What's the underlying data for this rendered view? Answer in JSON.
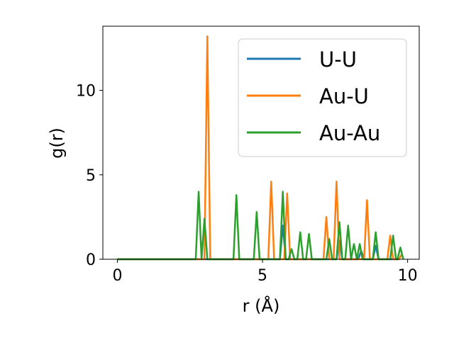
{
  "chart_data": {
    "type": "line",
    "title": "",
    "xlabel": "r (Å)",
    "ylabel": "g(r)",
    "xlim": [
      -0.5,
      10.4
    ],
    "ylim": [
      0,
      13.8
    ],
    "xticks": [
      0,
      5,
      10
    ],
    "yticks": [
      0,
      5,
      10
    ],
    "grid": false,
    "legend_position": "upper right",
    "series": [
      {
        "name": "U-U",
        "color": "#1f77b4",
        "x": [
          0,
          5.6,
          5.7,
          5.8,
          7.55,
          7.65,
          7.75,
          8.3,
          8.4,
          8.5,
          8.8,
          8.9,
          9.0,
          9.7,
          9.8
        ],
        "y": [
          0,
          0,
          2.0,
          0,
          0,
          1.1,
          0,
          0,
          0.5,
          0,
          0,
          0.8,
          0,
          0,
          0.3
        ]
      },
      {
        "name": "Au-U",
        "color": "#ff7f0e",
        "x": [
          0,
          3.0,
          3.1,
          3.2,
          5.2,
          5.3,
          5.4,
          5.75,
          5.85,
          5.95,
          7.1,
          7.2,
          7.3,
          7.45,
          7.55,
          7.65,
          8.5,
          8.6,
          8.7,
          9.3,
          9.4,
          9.5,
          9.7,
          9.8
        ],
        "y": [
          0,
          0,
          13.2,
          0,
          0,
          4.6,
          0,
          0,
          3.9,
          0,
          0,
          2.5,
          0,
          0,
          4.6,
          0,
          0,
          3.5,
          0,
          0,
          1.4,
          0,
          0,
          0.3
        ]
      },
      {
        "name": "Au-Au",
        "color": "#2ca02c",
        "x": [
          0,
          2.7,
          2.8,
          2.9,
          3.0,
          3.1,
          4.0,
          4.1,
          4.2,
          4.7,
          4.8,
          4.9,
          5.6,
          5.7,
          5.8,
          5.9,
          6.0,
          6.1,
          6.2,
          6.3,
          6.4,
          6.5,
          6.6,
          6.7,
          7.2,
          7.3,
          7.4,
          7.55,
          7.65,
          7.75,
          7.85,
          7.95,
          8.05,
          8.15,
          8.25,
          8.35,
          8.45,
          8.55,
          8.8,
          8.9,
          9.0,
          9.4,
          9.5,
          9.6,
          9.65,
          9.75,
          9.85
        ],
        "y": [
          0,
          0,
          4.0,
          0,
          2.4,
          0,
          0,
          3.8,
          0,
          0,
          2.8,
          0,
          0,
          4.0,
          0,
          0,
          0.6,
          0,
          0,
          1.6,
          0,
          0,
          1.5,
          0,
          0,
          1.2,
          0,
          0,
          2.2,
          0,
          0,
          2.0,
          0,
          0.9,
          0,
          0.9,
          0,
          0,
          0,
          1.6,
          0,
          0,
          1.4,
          0,
          0,
          0.7,
          0
        ]
      }
    ]
  }
}
